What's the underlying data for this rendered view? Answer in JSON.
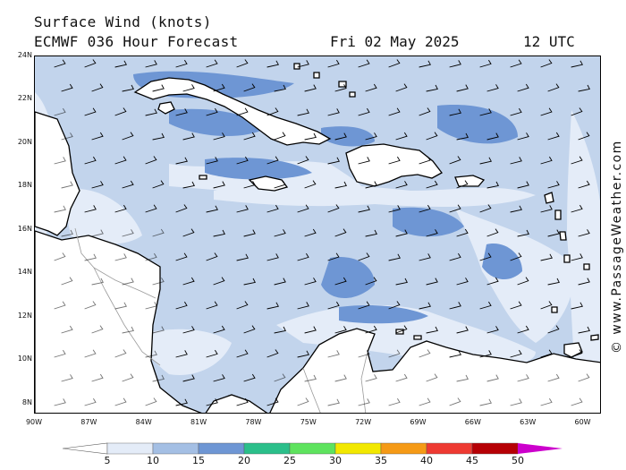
{
  "header": {
    "title_line1": "Surface Wind (knots)",
    "title_line2": "ECMWF 036 Hour Forecast",
    "date": "Fri 02 May 2025",
    "time": "12 UTC"
  },
  "credit": "© www.PassageWeather.com",
  "map": {
    "lon_range": [
      -90,
      -59
    ],
    "lat_range": [
      7.5,
      24
    ],
    "lat_labels": [
      "24N",
      "22N",
      "20N",
      "18N",
      "16N",
      "14N",
      "12N",
      "10N",
      "8N"
    ],
    "lat_values": [
      24,
      22,
      20,
      18,
      16,
      14,
      12,
      10,
      8
    ],
    "lon_labels": [
      "90W",
      "87W",
      "84W",
      "81W",
      "78W",
      "75W",
      "72W",
      "69W",
      "66W",
      "63W",
      "60W"
    ],
    "lon_values": [
      -90,
      -87,
      -84,
      -81,
      -78,
      -75,
      -72,
      -69,
      -66,
      -63,
      -60
    ],
    "colors": {
      "ocean_base": "#c2d4ec",
      "light_wind": "#e4ecf8",
      "strong_wind": "#6e96d4",
      "land": "#ffffff",
      "coast": "#000000",
      "border": "#9a9a9a"
    },
    "wind_field": "east-northeast trade winds, mostly 10-15 knots over the Caribbean Sea"
  },
  "legend": {
    "labels": [
      "5",
      "10",
      "15",
      "20",
      "25",
      "30",
      "35",
      "40",
      "45",
      "50"
    ],
    "bins": [
      {
        "from": 5,
        "to": 10,
        "color": "#e4ecf8"
      },
      {
        "from": 10,
        "to": 15,
        "color": "#a4bfe4"
      },
      {
        "from": 15,
        "to": 20,
        "color": "#6e96d4"
      },
      {
        "from": 20,
        "to": 25,
        "color": "#2bbf8a"
      },
      {
        "from": 25,
        "to": 30,
        "color": "#5ee35e"
      },
      {
        "from": 30,
        "to": 35,
        "color": "#f2e800"
      },
      {
        "from": 35,
        "to": 40,
        "color": "#f59a16"
      },
      {
        "from": 40,
        "to": 45,
        "color": "#ee3a32"
      },
      {
        "from": 45,
        "to": 50,
        "color": "#b60005"
      }
    ],
    "low_arrow_color": "#ffffff",
    "high_arrow_color": "#cc00cc"
  }
}
